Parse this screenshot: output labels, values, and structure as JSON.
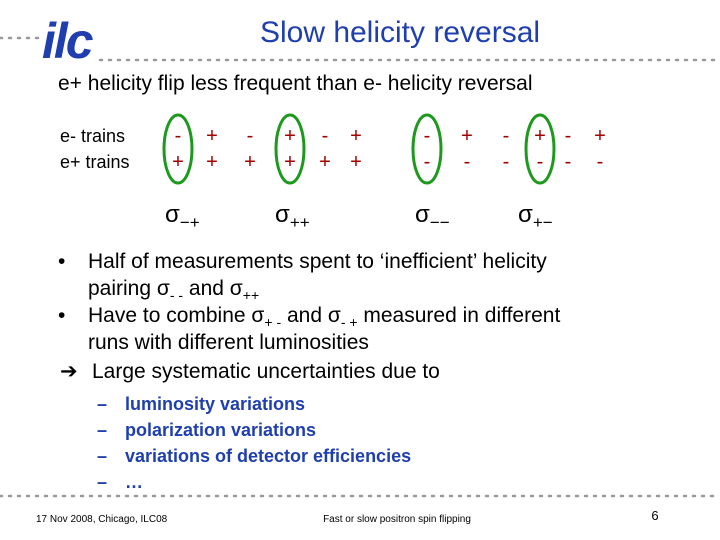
{
  "logo": "ilc",
  "title": "Slow helicity reversal",
  "subtitle": "e+ helicity flip less frequent than e- helicity reversal",
  "trains": {
    "row_labels": [
      "e- trains",
      "e+ trains"
    ],
    "columns": [
      [
        "-",
        "+"
      ],
      [
        "+",
        "+"
      ],
      [
        "-",
        "+"
      ],
      [
        "+",
        "+"
      ],
      [
        "-",
        "+"
      ],
      [
        "+",
        "+"
      ],
      [
        "-",
        "-"
      ],
      [
        "+",
        "-"
      ],
      [
        "-",
        "-"
      ],
      [
        "+",
        "-"
      ],
      [
        "-",
        "-"
      ],
      [
        "+",
        "-"
      ]
    ]
  },
  "pairings": [
    {
      "symbol": "σ",
      "sub": "−+"
    },
    {
      "symbol": "σ",
      "sub": "++"
    },
    {
      "symbol": "σ",
      "sub": "−−"
    },
    {
      "symbol": "σ",
      "sub": "+−"
    }
  ],
  "bullets": [
    {
      "lines": [
        [
          {
            "text": "Half of measurements spent to ‘inefficient’  helicity"
          }
        ],
        [
          {
            "text": "pairing "
          },
          {
            "text": "σ",
            "sub": "- -"
          },
          {
            "text": " and "
          },
          {
            "text": "σ",
            "sub": "++"
          }
        ]
      ]
    },
    {
      "lines": [
        [
          {
            "text": "Have to combine "
          },
          {
            "text": "σ",
            "sub": "+ -"
          },
          {
            "text": " and "
          },
          {
            "text": "σ",
            "sub": "- +"
          },
          {
            "text": "  measured in different"
          }
        ],
        [
          {
            "text": "runs with different luminosities"
          }
        ]
      ]
    }
  ],
  "conclusion": "Large systematic uncertainties due to",
  "sub_bullets": [
    "luminosity variations",
    "polarization variations",
    "variations of detector efficiencies",
    "…"
  ],
  "footer": {
    "left": "17 Nov 2008, Chicago, ILC08",
    "center": "Fast or slow positron spin flipping",
    "page": "6"
  }
}
